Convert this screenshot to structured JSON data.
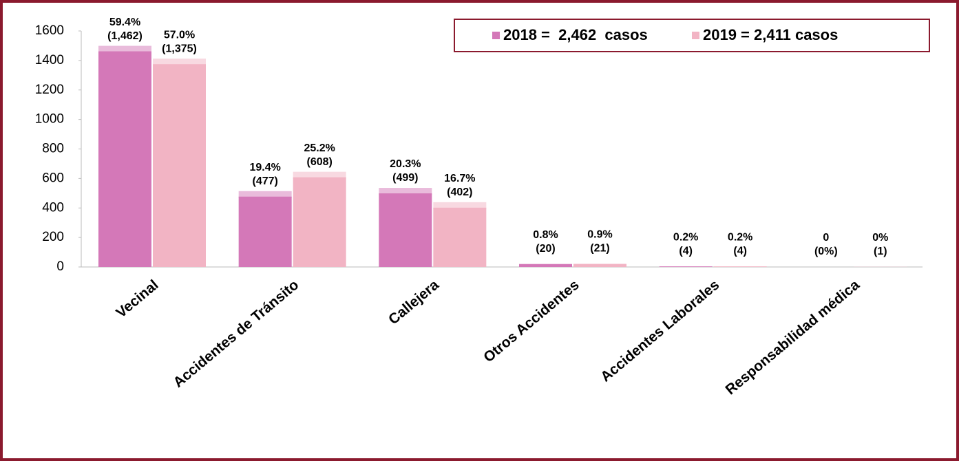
{
  "chart_data": {
    "type": "bar",
    "categories": [
      "Vecinal",
      "Accidentes de Tránsito",
      "Callejera",
      "Otros Accidentes",
      "Accidentes Laborales",
      "Responsabilidad médica"
    ],
    "series": [
      {
        "name": "2018 =  2,462  casos",
        "color": "#d478b8",
        "values": [
          1462,
          477,
          499,
          20,
          4,
          0
        ],
        "value_labels": [
          [
            "59.4%",
            "(1,462)"
          ],
          [
            "19.4%",
            "(477)"
          ],
          [
            "20.3%",
            "(499)"
          ],
          [
            "0.8%",
            "(20)"
          ],
          [
            "0.2%",
            "(4)"
          ],
          [
            "0",
            "(0%)"
          ]
        ]
      },
      {
        "name": "2019 = 2,411 casos",
        "color": "#f2b4c4",
        "values": [
          1375,
          608,
          402,
          21,
          4,
          1
        ],
        "value_labels": [
          [
            "57.0%",
            "(1,375)"
          ],
          [
            "25.2%",
            "(608)"
          ],
          [
            "16.7%",
            "(402)"
          ],
          [
            "0.9%",
            "(21)"
          ],
          [
            "0.2%",
            "(4)"
          ],
          [
            "0%",
            "(1)"
          ]
        ]
      }
    ],
    "ylim": [
      0,
      1600
    ],
    "yticks": [
      0,
      200,
      400,
      600,
      800,
      1000,
      1200,
      1400,
      1600
    ]
  }
}
